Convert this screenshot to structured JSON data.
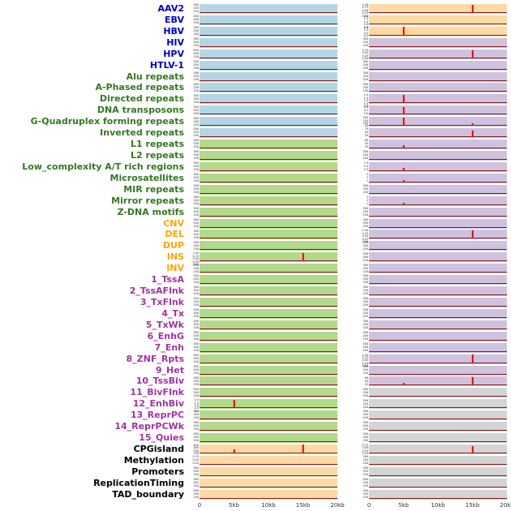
{
  "colors": {
    "label": {
      "blue": "#0000c8",
      "green": "#337722",
      "orange": "#ffa500",
      "purple": "#a233a2",
      "black": "#000000"
    },
    "panel": {
      "blue": "#b4d6e4",
      "green": "#b2d98c",
      "orange": "#fdd9a5",
      "purple": "#cfc2de",
      "gray": "#d4d4d4"
    },
    "spike": "#ee0000",
    "baseline": "#8b1a1a"
  },
  "chart_data": {
    "type": "bar",
    "title": "",
    "description": "Multi-track genomic annotation signal plot: 44 feature tracks, two region columns (0-20kb each). Red spikes mark enrichment peaks over a dark-red baseline; panel background color groups track categories.",
    "x_axis": {
      "ticks": [
        "0",
        "5kb",
        "10kb",
        "15kb",
        "20kb"
      ],
      "range_kb": [
        0,
        20
      ]
    },
    "spike_format": "[x_fraction_of_20kb, height_fraction]",
    "rows": [
      {
        "label": "AAV2",
        "lc": "blue",
        "l": {
          "bg": "blue",
          "t": [
            "300",
            "200",
            "100"
          ],
          "s": []
        },
        "r": {
          "bg": "orange",
          "t": [
            "1.00",
            "0.75",
            "0.50",
            "0.25",
            "0.00"
          ],
          "s": [
            [
              0.75,
              1.0
            ]
          ]
        }
      },
      {
        "label": "EBV",
        "lc": "blue",
        "l": {
          "bg": "blue",
          "t": [
            "300",
            "200",
            "100"
          ],
          "s": []
        },
        "r": {
          "bg": "orange",
          "t": [
            "2.0",
            "1.5",
            "1.0",
            "0.5",
            "0.0"
          ],
          "s": []
        }
      },
      {
        "label": "HBV",
        "lc": "blue",
        "l": {
          "bg": "blue",
          "t": [
            "300",
            "200",
            "100"
          ],
          "s": []
        },
        "r": {
          "bg": "orange",
          "t": [
            "1.5",
            "1.0",
            "0.5",
            "0.0"
          ],
          "s": [
            [
              0.25,
              1.0
            ]
          ]
        }
      },
      {
        "label": "HIV",
        "lc": "blue",
        "l": {
          "bg": "blue",
          "t": [
            "300",
            "200",
            "100"
          ],
          "s": []
        },
        "r": {
          "bg": "purple",
          "t": [
            "300",
            "200",
            "100"
          ],
          "s": []
        }
      },
      {
        "label": "HPV",
        "lc": "blue",
        "l": {
          "bg": "blue",
          "t": [
            "500",
            "300",
            "100"
          ],
          "s": []
        },
        "r": {
          "bg": "purple",
          "t": [
            "0.75",
            "0.50",
            "0.25",
            "0.00"
          ],
          "s": [
            [
              0.75,
              0.95
            ]
          ]
        }
      },
      {
        "label": "HTLV-1",
        "lc": "blue",
        "l": {
          "bg": "blue",
          "t": [
            "300",
            "200",
            "100"
          ],
          "s": []
        },
        "r": {
          "bg": "purple",
          "t": [
            "300",
            "200",
            "100"
          ],
          "s": []
        }
      },
      {
        "label": "Alu repeats",
        "lc": "green",
        "l": {
          "bg": "blue",
          "t": [
            "300",
            "200",
            "100"
          ],
          "s": []
        },
        "r": {
          "bg": "purple",
          "t": [
            "300",
            "200",
            "100"
          ],
          "s": []
        }
      },
      {
        "label": "A-Phased repeats",
        "lc": "green",
        "l": {
          "bg": "blue",
          "t": [
            "300",
            "200",
            "100"
          ],
          "s": []
        },
        "r": {
          "bg": "purple",
          "t": [
            "300",
            "200",
            "100"
          ],
          "s": []
        }
      },
      {
        "label": "Directed repeats",
        "lc": "green",
        "l": {
          "bg": "blue",
          "t": [
            "300",
            "200",
            "100"
          ],
          "s": []
        },
        "r": {
          "bg": "purple",
          "t": [
            "2.0",
            "1.5",
            "1.0",
            "0.5",
            "0.0"
          ],
          "s": [
            [
              0.25,
              0.95
            ]
          ]
        }
      },
      {
        "label": "DNA transposons",
        "lc": "green",
        "l": {
          "bg": "blue",
          "t": [
            "300",
            "200",
            "100"
          ],
          "s": []
        },
        "r": {
          "bg": "purple",
          "t": [
            "0.4",
            "0.2",
            "0.0"
          ],
          "s": [
            [
              0.25,
              0.85
            ]
          ]
        }
      },
      {
        "label": "G-Quadruplex forming repeats",
        "lc": "green",
        "l": {
          "bg": "blue",
          "t": [
            "300",
            "200",
            "100"
          ],
          "s": []
        },
        "r": {
          "bg": "purple",
          "t": [
            "200",
            "150",
            "100",
            "50"
          ],
          "s": [
            [
              0.25,
              1.0
            ],
            [
              0.75,
              0.35
            ]
          ]
        }
      },
      {
        "label": "Inverted repeats",
        "lc": "green",
        "l": {
          "bg": "blue",
          "t": [
            "300",
            "200",
            "100"
          ],
          "s": []
        },
        "r": {
          "bg": "purple",
          "t": [
            "75",
            "50",
            "25"
          ],
          "s": [
            [
              0.75,
              0.75
            ]
          ]
        }
      },
      {
        "label": "L1 repeats",
        "lc": "green",
        "l": {
          "bg": "green",
          "t": [
            "300",
            "200",
            "100"
          ],
          "s": []
        },
        "r": {
          "bg": "purple",
          "t": [
            "60",
            "40",
            "20"
          ],
          "s": [
            [
              0.25,
              0.4
            ]
          ]
        }
      },
      {
        "label": "L2 repeats",
        "lc": "green",
        "l": {
          "bg": "green",
          "t": [
            "300",
            "200",
            "100"
          ],
          "s": []
        },
        "r": {
          "bg": "purple",
          "t": [
            "300",
            "200",
            "100"
          ],
          "s": []
        }
      },
      {
        "label": "Low_complexity A/T rich regions",
        "lc": "green",
        "l": {
          "bg": "green",
          "t": [
            "300",
            "200",
            "100"
          ],
          "s": []
        },
        "r": {
          "bg": "purple",
          "t": [
            "7.5",
            "5.0",
            "2.5"
          ],
          "s": [
            [
              0.25,
              0.35
            ]
          ]
        }
      },
      {
        "label": "Microsatellites",
        "lc": "green",
        "l": {
          "bg": "green",
          "t": [
            "300",
            "200",
            "100"
          ],
          "s": []
        },
        "r": {
          "bg": "purple",
          "t": [
            "3",
            "2",
            "1"
          ],
          "s": [
            [
              0.25,
              0.3
            ]
          ]
        }
      },
      {
        "label": "MIR repeats",
        "lc": "green",
        "l": {
          "bg": "green",
          "t": [
            "300",
            "200",
            "100"
          ],
          "s": []
        },
        "r": {
          "bg": "purple",
          "t": [
            "300",
            "200",
            "100"
          ],
          "s": []
        }
      },
      {
        "label": "Mirror repeats",
        "lc": "green",
        "l": {
          "bg": "green",
          "t": [
            "300",
            "200",
            "100"
          ],
          "s": []
        },
        "r": {
          "bg": "purple",
          "t": [
            "3",
            "2",
            "1"
          ],
          "s": [
            [
              0.25,
              0.25
            ]
          ]
        }
      },
      {
        "label": "Z-DNA motifs",
        "lc": "green",
        "l": {
          "bg": "green",
          "t": [
            "300",
            "200",
            "100"
          ],
          "s": []
        },
        "r": {
          "bg": "purple",
          "t": [
            "300",
            "200",
            "100"
          ],
          "s": []
        }
      },
      {
        "label": "CNV",
        "lc": "orange",
        "l": {
          "bg": "green",
          "t": [
            "300",
            "200",
            "100"
          ],
          "s": []
        },
        "r": {
          "bg": "purple",
          "t": [
            "300",
            "200",
            "100"
          ],
          "s": []
        }
      },
      {
        "label": "DEL",
        "lc": "orange",
        "l": {
          "bg": "green",
          "t": [
            "300",
            "200",
            "100"
          ],
          "s": []
        },
        "r": {
          "bg": "purple",
          "t": [
            "1.00",
            "0.75",
            "0.50",
            "0.25",
            "0.00"
          ],
          "s": [
            [
              0.75,
              1.0
            ]
          ]
        }
      },
      {
        "label": "DUP",
        "lc": "orange",
        "l": {
          "bg": "green",
          "t": [
            "300",
            "200",
            "100"
          ],
          "s": []
        },
        "r": {
          "bg": "purple",
          "t": [
            "300",
            "200",
            "100"
          ],
          "s": []
        }
      },
      {
        "label": "INS",
        "lc": "orange",
        "l": {
          "bg": "green",
          "t": [
            "1.00",
            "0.75",
            "0.50",
            "0.25",
            "0.00"
          ],
          "s": [
            [
              0.75,
              1.0
            ]
          ]
        },
        "r": {
          "bg": "purple",
          "t": [
            "500",
            "300",
            "100"
          ],
          "s": []
        }
      },
      {
        "label": "INV",
        "lc": "orange",
        "l": {
          "bg": "green",
          "t": [
            "300",
            "200",
            "100"
          ],
          "s": []
        },
        "r": {
          "bg": "purple",
          "t": [
            "300",
            "200",
            "100"
          ],
          "s": []
        }
      },
      {
        "label": "1_TssA",
        "lc": "purple",
        "l": {
          "bg": "green",
          "t": [
            "300",
            "200",
            "100"
          ],
          "s": []
        },
        "r": {
          "bg": "purple",
          "t": [
            "300",
            "200",
            "100"
          ],
          "s": []
        }
      },
      {
        "label": "2_TssAFlnk",
        "lc": "purple",
        "l": {
          "bg": "green",
          "t": [
            "300",
            "200",
            "100"
          ],
          "s": []
        },
        "r": {
          "bg": "purple",
          "t": [
            "300",
            "200",
            "100"
          ],
          "s": []
        }
      },
      {
        "label": "3_TxFlnk",
        "lc": "purple",
        "l": {
          "bg": "green",
          "t": [
            "300",
            "200",
            "100"
          ],
          "s": []
        },
        "r": {
          "bg": "purple",
          "t": [
            "300",
            "200",
            "100"
          ],
          "s": []
        }
      },
      {
        "label": "4_Tx",
        "lc": "purple",
        "l": {
          "bg": "green",
          "t": [
            "500",
            "300",
            "100"
          ],
          "s": []
        },
        "r": {
          "bg": "purple",
          "t": [
            "300",
            "200",
            "100"
          ],
          "s": []
        }
      },
      {
        "label": "5_TxWk",
        "lc": "purple",
        "l": {
          "bg": "green",
          "t": [
            "300",
            "200",
            "100"
          ],
          "s": []
        },
        "r": {
          "bg": "purple",
          "t": [
            "300",
            "200",
            "100"
          ],
          "s": []
        }
      },
      {
        "label": "6_EnhG",
        "lc": "purple",
        "l": {
          "bg": "green",
          "t": [
            "300",
            "200",
            "100"
          ],
          "s": []
        },
        "r": {
          "bg": "purple",
          "t": [
            "300",
            "200",
            "100"
          ],
          "s": []
        }
      },
      {
        "label": "7_Enh",
        "lc": "purple",
        "l": {
          "bg": "green",
          "t": [
            "300",
            "200",
            "100"
          ],
          "s": []
        },
        "r": {
          "bg": "purple",
          "t": [
            "300",
            "200",
            "100"
          ],
          "s": []
        }
      },
      {
        "label": "8_ZNF_Rpts",
        "lc": "purple",
        "l": {
          "bg": "green",
          "t": [
            "300",
            "200",
            "100"
          ],
          "s": []
        },
        "r": {
          "bg": "purple",
          "t": [
            "1.00",
            "0.75",
            "0.50",
            "0.25",
            "0.00"
          ],
          "s": [
            [
              0.75,
              1.0
            ]
          ]
        }
      },
      {
        "label": "9_Het",
        "lc": "purple",
        "l": {
          "bg": "green",
          "t": [
            "300",
            "200",
            "100"
          ],
          "s": []
        },
        "r": {
          "bg": "purple",
          "t": [
            "300",
            "200",
            "100"
          ],
          "s": []
        }
      },
      {
        "label": "10_TssBiv",
        "lc": "purple",
        "l": {
          "bg": "green",
          "t": [
            "300",
            "200",
            "100"
          ],
          "s": []
        },
        "r": {
          "bg": "purple",
          "t": [
            "60",
            "40",
            "20"
          ],
          "s": [
            [
              0.25,
              0.3
            ],
            [
              0.75,
              1.0
            ]
          ]
        }
      },
      {
        "label": "11_BivFlnk",
        "lc": "purple",
        "l": {
          "bg": "green",
          "t": [
            "500",
            "300",
            "100"
          ],
          "s": []
        },
        "r": {
          "bg": "gray",
          "t": [
            "300",
            "200",
            "100"
          ],
          "s": []
        }
      },
      {
        "label": "12_EnhBiv",
        "lc": "purple",
        "l": {
          "bg": "green",
          "t": [
            "2.0",
            "1.5",
            "1.0",
            "0.5",
            "0.0"
          ],
          "s": [
            [
              0.25,
              1.0
            ]
          ]
        },
        "r": {
          "bg": "gray",
          "t": [
            "300",
            "200",
            "100"
          ],
          "s": []
        }
      },
      {
        "label": "13_ReprPC",
        "lc": "purple",
        "l": {
          "bg": "green",
          "t": [
            "300",
            "200",
            "100"
          ],
          "s": []
        },
        "r": {
          "bg": "gray",
          "t": [
            "300",
            "200",
            "100"
          ],
          "s": []
        }
      },
      {
        "label": "14_ReprPCWk",
        "lc": "purple",
        "l": {
          "bg": "green",
          "t": [
            "300",
            "200",
            "100"
          ],
          "s": []
        },
        "r": {
          "bg": "gray",
          "t": [
            "300",
            "200",
            "100"
          ],
          "s": []
        }
      },
      {
        "label": "15_Quies",
        "lc": "purple",
        "l": {
          "bg": "green",
          "t": [
            "300",
            "200",
            "100"
          ],
          "s": []
        },
        "r": {
          "bg": "gray",
          "t": [
            "300",
            "200",
            "100"
          ],
          "s": []
        }
      },
      {
        "label": "CPGisland",
        "lc": "black",
        "l": {
          "bg": "orange",
          "t": [
            "400",
            "300",
            "200",
            "100"
          ],
          "s": [
            [
              0.25,
              0.45
            ],
            [
              0.75,
              1.0
            ]
          ]
        },
        "r": {
          "bg": "gray",
          "t": [
            "0.75",
            "0.50",
            "0.25",
            "0.00"
          ],
          "s": [
            [
              0.75,
              0.9
            ]
          ]
        }
      },
      {
        "label": "Methylation",
        "lc": "black",
        "l": {
          "bg": "orange",
          "t": [
            "0.75",
            "0.50",
            "0.25"
          ],
          "s": []
        },
        "r": {
          "bg": "gray",
          "t": [
            "300",
            "200",
            "100"
          ],
          "s": []
        }
      },
      {
        "label": "Promoters",
        "lc": "black",
        "l": {
          "bg": "orange",
          "t": [
            "300",
            "200",
            "100"
          ],
          "s": []
        },
        "r": {
          "bg": "gray",
          "t": [
            "300",
            "200",
            "100"
          ],
          "s": []
        }
      },
      {
        "label": "ReplicationTiming",
        "lc": "black",
        "l": {
          "bg": "orange",
          "t": [
            "300",
            "200",
            "100"
          ],
          "s": []
        },
        "r": {
          "bg": "gray",
          "t": [
            "300",
            "200",
            "100"
          ],
          "s": []
        }
      },
      {
        "label": "TAD_boundary",
        "lc": "black",
        "l": {
          "bg": "orange",
          "t": [
            "300",
            "200",
            "100"
          ],
          "s": []
        },
        "r": {
          "bg": "gray",
          "t": [
            "300",
            "200",
            "100"
          ],
          "s": []
        }
      }
    ]
  }
}
